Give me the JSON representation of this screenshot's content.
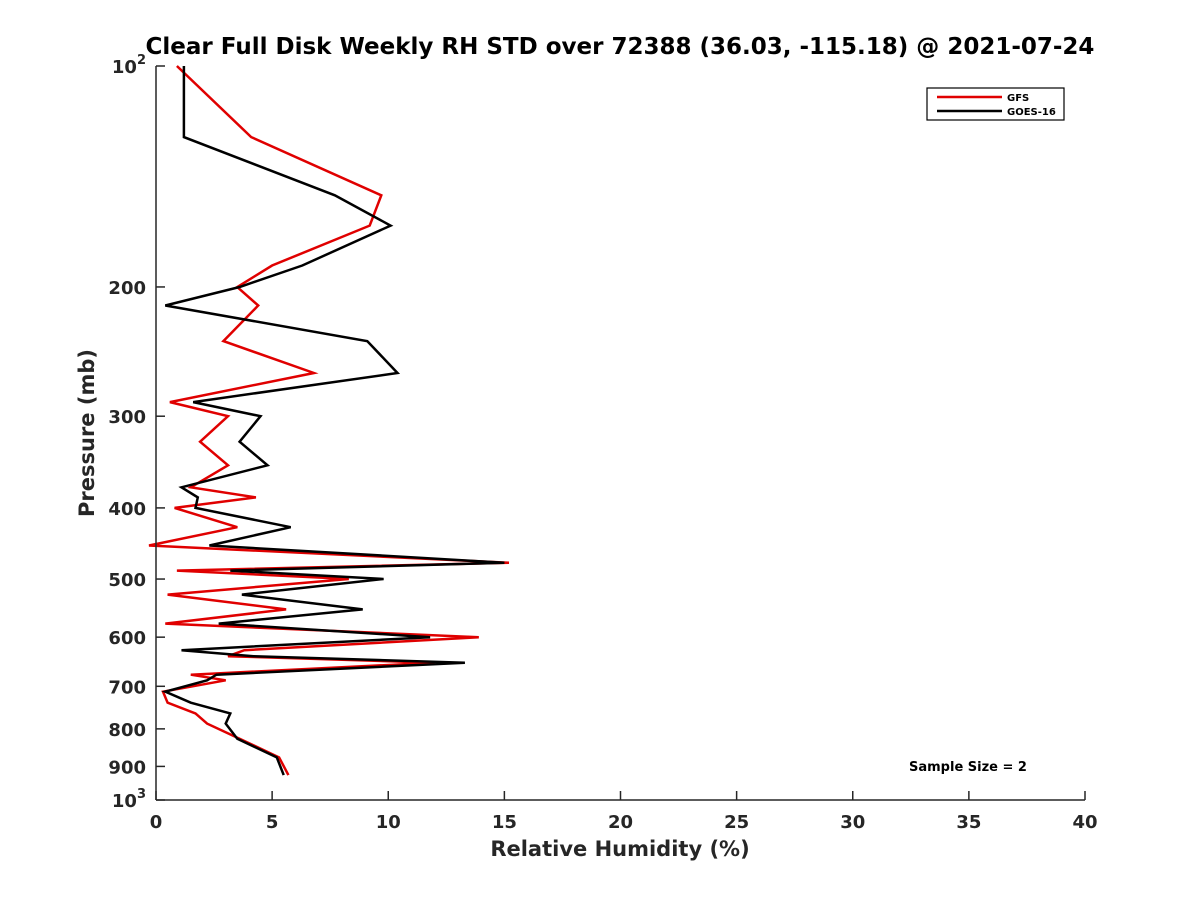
{
  "chart_data": {
    "type": "line",
    "title": "Clear Full Disk Weekly RH STD over 72388 (36.03, -115.18) @ 2021-07-24",
    "xlabel": "Relative Humidity (%)",
    "ylabel": "Pressure (mb)",
    "xlim": [
      0,
      40
    ],
    "ylim": [
      100,
      1000
    ],
    "y_scale": "log",
    "y_reversed": true,
    "x_ticks": [
      0,
      5,
      10,
      15,
      20,
      25,
      30,
      35,
      40
    ],
    "x_tick_labels": [
      "0",
      "5",
      "10",
      "15",
      "20",
      "25",
      "30",
      "35",
      "40"
    ],
    "y_ticks": [
      100,
      200,
      300,
      400,
      500,
      600,
      700,
      800,
      900,
      1000
    ],
    "y_tick_labels": [
      "10^2",
      "200",
      "300",
      "400",
      "500",
      "600",
      "700",
      "800",
      "900",
      "10^3"
    ],
    "grid": false,
    "legend_position": "top-right",
    "annotation": "Sample Size = 2",
    "series": [
      {
        "name": "GFS",
        "color": "#e00000",
        "points": [
          [
            0.9,
            100
          ],
          [
            4.1,
            125
          ],
          [
            9.7,
            150
          ],
          [
            9.2,
            165
          ],
          [
            5.0,
            187
          ],
          [
            3.5,
            200
          ],
          [
            4.4,
            212
          ],
          [
            2.9,
            237
          ],
          [
            6.8,
            262
          ],
          [
            0.6,
            287
          ],
          [
            3.1,
            300
          ],
          [
            1.9,
            325
          ],
          [
            3.1,
            350
          ],
          [
            1.5,
            375
          ],
          [
            4.3,
            387
          ],
          [
            0.8,
            400
          ],
          [
            3.5,
            425
          ],
          [
            -0.3,
            450
          ],
          [
            15.2,
            475
          ],
          [
            0.9,
            487
          ],
          [
            8.3,
            500
          ],
          [
            0.5,
            525
          ],
          [
            5.6,
            550
          ],
          [
            0.4,
            575
          ],
          [
            13.9,
            600
          ],
          [
            3.8,
            625
          ],
          [
            3.1,
            637
          ],
          [
            12.0,
            650
          ],
          [
            1.5,
            675
          ],
          [
            3.0,
            687
          ],
          [
            0.3,
            712
          ],
          [
            0.5,
            737
          ],
          [
            1.7,
            762
          ],
          [
            2.2,
            787
          ],
          [
            3.6,
            825
          ],
          [
            5.3,
            875
          ],
          [
            5.7,
            925
          ]
        ]
      },
      {
        "name": "GOES-16",
        "color": "#000000",
        "points": [
          [
            1.2,
            100
          ],
          [
            1.2,
            125
          ],
          [
            7.7,
            150
          ],
          [
            10.1,
            165
          ],
          [
            6.3,
            187
          ],
          [
            3.6,
            200
          ],
          [
            0.4,
            212
          ],
          [
            9.1,
            237
          ],
          [
            10.4,
            262
          ],
          [
            1.6,
            287
          ],
          [
            4.5,
            300
          ],
          [
            3.6,
            325
          ],
          [
            4.8,
            350
          ],
          [
            1.1,
            375
          ],
          [
            1.8,
            387
          ],
          [
            1.7,
            400
          ],
          [
            5.8,
            425
          ],
          [
            2.3,
            450
          ],
          [
            15.0,
            475
          ],
          [
            3.2,
            487
          ],
          [
            9.8,
            500
          ],
          [
            3.7,
            525
          ],
          [
            8.9,
            550
          ],
          [
            2.7,
            575
          ],
          [
            11.8,
            600
          ],
          [
            1.1,
            625
          ],
          [
            4.2,
            637
          ],
          [
            13.3,
            650
          ],
          [
            2.6,
            675
          ],
          [
            2.2,
            687
          ],
          [
            0.4,
            712
          ],
          [
            1.5,
            737
          ],
          [
            3.2,
            762
          ],
          [
            3.0,
            787
          ],
          [
            3.5,
            825
          ],
          [
            5.2,
            875
          ],
          [
            5.5,
            925
          ]
        ]
      }
    ]
  }
}
